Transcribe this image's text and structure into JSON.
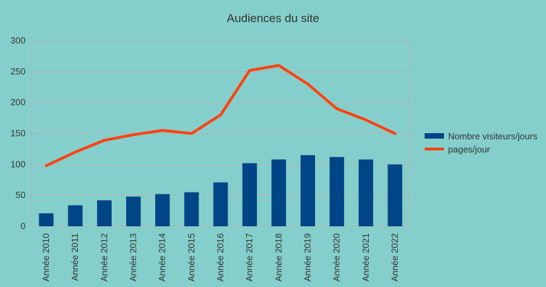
{
  "chart_data": {
    "type": "bar",
    "title": "Audiences du site",
    "categories": [
      "Année 2010",
      "Année 2011",
      "Année 2012",
      "Année 2013",
      "Année 2014",
      "Année 2015",
      "Année 2016",
      "Année 2017",
      "Année 2018",
      "Année 2019",
      "Année 2020",
      "Année 2021",
      "Année 2022"
    ],
    "series": [
      {
        "name": "Nombre visiteurs/jours",
        "kind": "bar",
        "color": "#004586",
        "values": [
          21,
          34,
          42,
          48,
          52,
          55,
          71,
          102,
          108,
          115,
          112,
          108,
          100
        ]
      },
      {
        "name": "pages/jour",
        "kind": "line",
        "color": "#ff420e",
        "values": [
          98,
          120,
          139,
          148,
          155,
          150,
          180,
          252,
          260,
          230,
          190,
          172,
          150
        ]
      }
    ],
    "ylim": [
      0,
      300
    ],
    "yticks": [
      0,
      50,
      100,
      150,
      200,
      250,
      300
    ],
    "grid": true,
    "legend_position": "right",
    "background_color": "#84cfcc",
    "grid_color": "#b3b3b3"
  }
}
